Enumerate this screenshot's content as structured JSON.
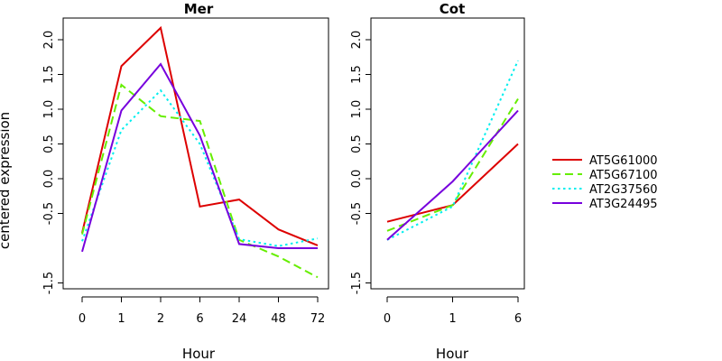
{
  "chart_data": [
    {
      "type": "line",
      "title": "Mer",
      "xlabel": "Hour",
      "ylabel": "centered expression",
      "categories": [
        "0",
        "1",
        "2",
        "6",
        "24",
        "48",
        "72"
      ],
      "ylim": [
        -1.6,
        2.2
      ],
      "y_ticks": [
        "-1.5",
        "-0.5",
        "0.0",
        "0.5",
        "1.0",
        "1.5",
        "2.0"
      ],
      "y_tick_values": [
        -1.5,
        -0.5,
        0.0,
        0.5,
        1.0,
        1.5,
        2.0
      ],
      "series": [
        {
          "name": "AT5G61000",
          "values": [
            -0.78,
            1.62,
            2.17,
            -0.4,
            -0.3,
            -0.73,
            -0.96
          ]
        },
        {
          "name": "AT5G67100",
          "values": [
            -0.8,
            1.35,
            0.9,
            0.83,
            -0.88,
            -1.12,
            -1.42
          ]
        },
        {
          "name": "AT2G37560",
          "values": [
            -0.9,
            0.7,
            1.27,
            0.5,
            -0.87,
            -0.97,
            -0.86
          ]
        },
        {
          "name": "AT3G24495",
          "values": [
            -1.05,
            0.98,
            1.65,
            0.62,
            -0.94,
            -1.0,
            -1.0
          ]
        }
      ]
    },
    {
      "type": "line",
      "title": "Cot",
      "xlabel": "Hour",
      "ylabel": "",
      "categories": [
        "0",
        "1",
        "6"
      ],
      "ylim": [
        -1.6,
        2.2
      ],
      "y_ticks": [
        "-1.5",
        "-0.5",
        "0.0",
        "0.5",
        "1.0",
        "1.5",
        "2.0"
      ],
      "y_tick_values": [
        -1.5,
        -0.5,
        0.0,
        0.5,
        1.0,
        1.5,
        2.0
      ],
      "series": [
        {
          "name": "AT5G61000",
          "values": [
            -0.62,
            -0.38,
            0.5
          ]
        },
        {
          "name": "AT5G67100",
          "values": [
            -0.75,
            -0.38,
            1.15
          ]
        },
        {
          "name": "AT2G37560",
          "values": [
            -0.88,
            -0.4,
            1.7
          ]
        },
        {
          "name": "AT3G24495",
          "values": [
            -0.88,
            -0.04,
            0.98
          ]
        }
      ]
    }
  ],
  "legend": {
    "placement": "right",
    "entries": [
      "AT5G61000",
      "AT5G67100",
      "AT2G37560",
      "AT3G24495"
    ]
  },
  "series_styles": [
    {
      "color": "#dd0000",
      "dash": "solid"
    },
    {
      "color": "#66ee00",
      "dash": "dashed"
    },
    {
      "color": "#00eeee",
      "dash": "dotted"
    },
    {
      "color": "#7700dd",
      "dash": "solid"
    }
  ]
}
